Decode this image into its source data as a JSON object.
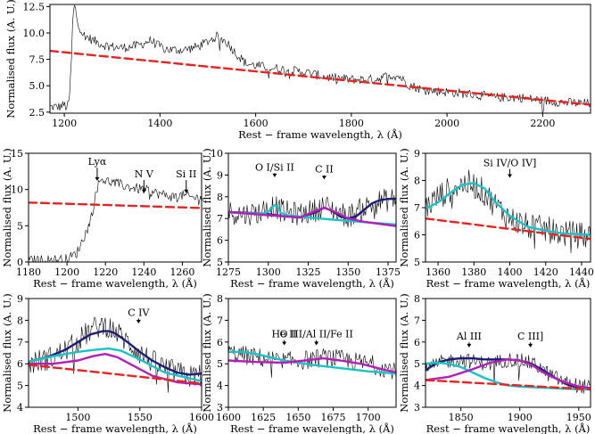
{
  "colors": {
    "data": "#000000",
    "powerlaw": "#e8231f",
    "component_cyan": "#18c3c8",
    "component_magenta": "#b51fb8",
    "total_navy": "#1c1c7a"
  },
  "chart_data": [
    {
      "type": "line",
      "panel": "top",
      "xlabel": "Rest − frame wavelength, λ (Å)",
      "ylabel": "Normalised flux (A. U.)",
      "xlim": [
        1170,
        2300
      ],
      "ylim": [
        2.4,
        12.7
      ],
      "xticks": [
        1200,
        1400,
        1600,
        1800,
        2000,
        2200
      ],
      "yticks": [
        2.5,
        5.0,
        7.5,
        10.0,
        12.5
      ],
      "ytick_labels": [
        "2.5",
        "5.0",
        "7.5",
        "10.0",
        "12.5"
      ],
      "annotations": [],
      "series": [
        {
          "name": "observed spectrum",
          "style": "data",
          "x": [
            1190,
            1200,
            1205,
            1210,
            1215,
            1218,
            1222,
            1228,
            1240,
            1260,
            1280,
            1300,
            1320,
            1340,
            1360,
            1380,
            1400,
            1420,
            1450,
            1480,
            1500,
            1520,
            1540,
            1560,
            1580,
            1600,
            1650,
            1700,
            1750,
            1800,
            1850,
            1880,
            1900,
            1920,
            1950,
            2000,
            2050,
            2100,
            2150,
            2200,
            2250,
            2300
          ],
          "y": [
            3.0,
            3.2,
            2.9,
            3.4,
            7.5,
            11.8,
            12.6,
            11.0,
            9.8,
            9.3,
            8.9,
            8.7,
            8.6,
            8.7,
            8.9,
            9.3,
            8.7,
            8.4,
            8.4,
            8.7,
            9.2,
            9.7,
            9.1,
            8.0,
            7.1,
            6.9,
            6.6,
            6.3,
            5.8,
            5.6,
            5.6,
            6.0,
            5.9,
            5.1,
            4.6,
            4.4,
            4.2,
            3.9,
            3.9,
            3.6,
            3.4,
            3.3
          ],
          "noise": 0.45
        },
        {
          "name": "power-law continuum",
          "style": "powerlaw",
          "x": [
            1170,
            2300
          ],
          "y": [
            8.3,
            3.2
          ]
        }
      ]
    },
    {
      "type": "line",
      "panel": "Lya",
      "xlabel": "Rest − frame wavelength, λ (Å)",
      "ylabel": "Normalised flux (A. U.)",
      "xlim": [
        1180,
        1270
      ],
      "ylim": [
        0,
        15
      ],
      "xticks": [
        1180,
        1200,
        1220,
        1240,
        1260
      ],
      "yticks": [
        0,
        5,
        10,
        15
      ],
      "ytick_labels": [
        "0",
        "5",
        "10",
        "15"
      ],
      "annotations": [
        {
          "text": "Lyα",
          "x": 1215.7,
          "y_top": 13.5,
          "y_tip": 11.2
        },
        {
          "text": "N V",
          "x": 1240.0,
          "y_top": 11.8,
          "y_tip": 9.5
        },
        {
          "text": "Si II",
          "x": 1262.0,
          "y_top": 11.8,
          "y_tip": 9.5
        }
      ],
      "series": [
        {
          "name": "observed spectrum",
          "style": "data",
          "x": [
            1180,
            1190,
            1200,
            1205,
            1209,
            1212,
            1214,
            1216,
            1218,
            1220,
            1225,
            1230,
            1235,
            1240,
            1245,
            1250,
            1255,
            1260,
            1265,
            1270
          ],
          "y": [
            0.2,
            0.3,
            0.4,
            1.2,
            3.5,
            5.5,
            8.0,
            10.6,
            11.6,
            11.2,
            10.9,
            10.5,
            10.2,
            10.0,
            9.6,
            9.3,
            9.0,
            9.2,
            8.9,
            8.8
          ],
          "noise": 0.7
        },
        {
          "name": "power-law continuum",
          "style": "powerlaw",
          "x": [
            1180,
            1270
          ],
          "y": [
            8.2,
            7.45
          ]
        }
      ]
    },
    {
      "type": "line",
      "panel": "SiII_CII",
      "xlabel": "Rest − frame wavelength, λ (Å)",
      "ylabel": "Normalised flux (A. U.)",
      "xlim": [
        1275,
        1380
      ],
      "ylim": [
        5,
        10
      ],
      "xticks": [
        1275,
        1300,
        1325,
        1350,
        1375
      ],
      "yticks": [
        5,
        6,
        7,
        8,
        9,
        10
      ],
      "ytick_labels": [
        "5",
        "6",
        "7",
        "8",
        "9",
        "10"
      ],
      "annotations": [
        {
          "text": "O I/Si II",
          "x": 1304.0,
          "y_top": 9.25,
          "y_tip": 8.9
        },
        {
          "text": "C II",
          "x": 1335.0,
          "y_top": 9.15,
          "y_tip": 8.8
        }
      ],
      "series": [
        {
          "name": "observed spectrum",
          "style": "data",
          "x": [
            1275,
            1285,
            1295,
            1302,
            1305,
            1310,
            1320,
            1330,
            1335,
            1340,
            1350,
            1360,
            1370,
            1380
          ],
          "y": [
            7.3,
            7.2,
            7.3,
            7.6,
            7.5,
            7.3,
            7.2,
            7.4,
            7.6,
            7.4,
            7.1,
            7.5,
            7.8,
            7.9
          ],
          "noise": 0.55
        },
        {
          "name": "total model",
          "style": "total",
          "x": [
            1275,
            1290,
            1300,
            1310,
            1320,
            1330,
            1335,
            1340,
            1345,
            1350,
            1355,
            1360,
            1365,
            1370,
            1375,
            1380
          ],
          "y": [
            7.3,
            7.25,
            7.2,
            7.1,
            7.05,
            7.3,
            7.5,
            7.35,
            7.1,
            7.0,
            7.1,
            7.4,
            7.7,
            7.85,
            7.9,
            7.9
          ]
        },
        {
          "name": "O I/Si II component",
          "style": "cyan",
          "x": [
            1275,
            1296,
            1300,
            1302,
            1304,
            1306,
            1308,
            1312,
            1325,
            1340,
            1380
          ],
          "y": [
            7.28,
            7.22,
            7.3,
            7.5,
            7.62,
            7.5,
            7.25,
            7.15,
            7.05,
            6.95,
            6.72
          ]
        },
        {
          "name": "C II component",
          "style": "magenta",
          "x": [
            1275,
            1300,
            1320,
            1328,
            1335,
            1342,
            1350,
            1360,
            1380
          ],
          "y": [
            7.3,
            7.15,
            7.05,
            7.3,
            7.5,
            7.3,
            7.0,
            6.85,
            6.65
          ]
        }
      ]
    },
    {
      "type": "line",
      "panel": "SiIV",
      "xlabel": "Rest − frame wavelength, λ (Å)",
      "ylabel": "Normalised flux (A. U.)",
      "xlim": [
        1353,
        1445
      ],
      "ylim": [
        5,
        9
      ],
      "xticks": [
        1360,
        1380,
        1400,
        1420,
        1440
      ],
      "yticks": [
        5,
        6,
        7,
        8,
        9
      ],
      "ytick_labels": [
        "5",
        "6",
        "7",
        "8",
        "9"
      ],
      "annotations": [
        {
          "text": "Si IV/O IV]",
          "x": 1400.0,
          "y_top": 8.55,
          "y_tip": 8.1
        }
      ],
      "series": [
        {
          "name": "observed spectrum",
          "style": "data",
          "x": [
            1353,
            1360,
            1370,
            1378,
            1385,
            1392,
            1400,
            1410,
            1420,
            1430,
            1445
          ],
          "y": [
            7.0,
            7.4,
            7.8,
            7.9,
            7.6,
            7.1,
            6.6,
            6.3,
            6.2,
            6.05,
            5.95
          ],
          "noise": 0.5
        },
        {
          "name": "Si IV/O IV] component",
          "style": "cyan",
          "x": [
            1353,
            1360,
            1368,
            1374,
            1380,
            1386,
            1392,
            1400,
            1410,
            1420,
            1430,
            1445
          ],
          "y": [
            6.95,
            7.2,
            7.6,
            7.85,
            7.9,
            7.7,
            7.2,
            6.7,
            6.3,
            6.15,
            6.05,
            6.0
          ]
        },
        {
          "name": "power-law continuum",
          "style": "powerlaw",
          "x": [
            1353,
            1445
          ],
          "y": [
            6.6,
            5.85
          ]
        }
      ]
    },
    {
      "type": "line",
      "panel": "CIV",
      "xlabel": "Rest − frame wavelength, λ (Å)",
      "ylabel": "Normalised flux (A. U.)",
      "xlim": [
        1460,
        1600
      ],
      "ylim": [
        4,
        9
      ],
      "xticks": [
        1500,
        1550,
        1600
      ],
      "yticks": [
        4,
        5,
        6,
        7,
        8,
        9
      ],
      "ytick_labels": [
        "4",
        "5",
        "6",
        "7",
        "8",
        "9"
      ],
      "annotations": [
        {
          "text": "C IV",
          "x": 1549.0,
          "y_top": 8.25,
          "y_tip": 7.85
        }
      ],
      "series": [
        {
          "name": "observed spectrum",
          "style": "data",
          "x": [
            1460,
            1480,
            1495,
            1505,
            1515,
            1522,
            1530,
            1540,
            1550,
            1560,
            1575,
            1590,
            1600
          ],
          "y": [
            6.0,
            6.3,
            6.8,
            7.3,
            7.7,
            7.8,
            7.5,
            7.0,
            6.5,
            6.1,
            5.7,
            5.4,
            5.5
          ],
          "noise": 0.55
        },
        {
          "name": "total model",
          "style": "total",
          "x": [
            1460,
            1475,
            1490,
            1500,
            1510,
            1520,
            1525,
            1530,
            1540,
            1550,
            1560,
            1570,
            1580,
            1590,
            1600
          ],
          "y": [
            6.1,
            6.3,
            6.65,
            7.0,
            7.35,
            7.5,
            7.5,
            7.4,
            7.0,
            6.55,
            6.15,
            5.85,
            5.6,
            5.5,
            5.55
          ]
        },
        {
          "name": "broad C IV component",
          "style": "cyan",
          "x": [
            1460,
            1480,
            1500,
            1515,
            1525,
            1535,
            1550,
            1570,
            1600
          ],
          "y": [
            6.1,
            6.35,
            6.55,
            6.65,
            6.7,
            6.6,
            6.2,
            5.6,
            5.2
          ]
        },
        {
          "name": "narrow C IV component",
          "style": "magenta",
          "x": [
            1460,
            1480,
            1500,
            1512,
            1522,
            1532,
            1545,
            1560,
            1580,
            1600
          ],
          "y": [
            6.0,
            6.0,
            6.15,
            6.35,
            6.45,
            6.3,
            5.9,
            5.45,
            5.15,
            5.05
          ]
        },
        {
          "name": "power-law continuum",
          "style": "powerlaw",
          "x": [
            1460,
            1600
          ],
          "y": [
            5.95,
            5.1
          ]
        }
      ]
    },
    {
      "type": "line",
      "panel": "OIII_AlII_FeII",
      "xlabel": "Rest − frame wavelength, λ (Å)",
      "ylabel": "Normalised flux (A. U.)",
      "xlim": [
        1600,
        1720
      ],
      "ylim": [
        3,
        8
      ],
      "xticks": [
        1600,
        1625,
        1650,
        1675,
        1700
      ],
      "yticks": [
        3,
        4,
        5,
        6,
        7,
        8
      ],
      "ytick_labels": [
        "3",
        "4",
        "5",
        "6",
        "7",
        "8"
      ],
      "annotations": [
        {
          "text": "He II",
          "x": 1640.0,
          "y_top": 6.25,
          "y_tip": 5.85
        },
        {
          "text": "O III/Al II/Fe II",
          "x": 1663.0,
          "y_top": 6.25,
          "y_tip": 5.85
        }
      ],
      "series": [
        {
          "name": "observed spectrum",
          "style": "data",
          "x": [
            1600,
            1620,
            1640,
            1660,
            1670,
            1680,
            1700,
            1720
          ],
          "y": [
            5.5,
            5.3,
            5.1,
            5.2,
            5.3,
            5.2,
            5.0,
            4.7
          ],
          "noise": 0.45
        },
        {
          "name": "Fe II/He II component",
          "style": "cyan",
          "x": [
            1600,
            1610,
            1620,
            1630,
            1640,
            1660,
            1680,
            1700,
            1720
          ],
          "y": [
            5.55,
            5.55,
            5.45,
            5.3,
            5.15,
            4.95,
            4.8,
            4.65,
            4.55
          ]
        },
        {
          "name": "O III/Al II component",
          "style": "magenta",
          "x": [
            1600,
            1620,
            1640,
            1655,
            1668,
            1680,
            1695,
            1710,
            1720
          ],
          "y": [
            5.15,
            5.08,
            5.05,
            5.15,
            5.25,
            5.15,
            5.0,
            4.75,
            4.6
          ]
        }
      ]
    },
    {
      "type": "line",
      "panel": "AlIII_CIII",
      "xlabel": "Rest − frame wavelength, λ (Å)",
      "ylabel": "Normalised flux (A. U.)",
      "xlim": [
        1820,
        1960
      ],
      "ylim": [
        3,
        8
      ],
      "xticks": [
        1850,
        1900,
        1950
      ],
      "yticks": [
        3,
        4,
        5,
        6,
        7,
        8
      ],
      "ytick_labels": [
        "3",
        "4",
        "5",
        "6",
        "7",
        "8"
      ],
      "annotations": [
        {
          "text": "Al III",
          "x": 1857.0,
          "y_top": 6.15,
          "y_tip": 5.75
        },
        {
          "text": "C III]",
          "x": 1909.0,
          "y_top": 6.15,
          "y_tip": 5.75
        }
      ],
      "series": [
        {
          "name": "observed spectrum",
          "style": "data",
          "x": [
            1820,
            1835,
            1850,
            1860,
            1875,
            1890,
            1905,
            1915,
            1925,
            1940,
            1960
          ],
          "y": [
            4.7,
            5.1,
            5.2,
            5.1,
            5.0,
            5.2,
            5.1,
            4.9,
            4.5,
            4.1,
            3.9
          ],
          "noise": 0.35
        },
        {
          "name": "total model",
          "style": "total",
          "x": [
            1820,
            1830,
            1840,
            1850,
            1860,
            1870,
            1880,
            1890,
            1900,
            1910,
            1920,
            1930,
            1940,
            1950,
            1960
          ],
          "y": [
            4.7,
            5.05,
            5.2,
            5.25,
            5.25,
            5.2,
            5.2,
            5.2,
            5.15,
            5.0,
            4.7,
            4.35,
            4.05,
            3.9,
            3.85
          ]
        },
        {
          "name": "Al III component",
          "style": "cyan",
          "x": [
            1820,
            1830,
            1840,
            1850,
            1860,
            1870,
            1880,
            1890,
            1900,
            1920,
            1940,
            1960
          ],
          "y": [
            5.0,
            5.05,
            5.0,
            4.85,
            4.6,
            4.35,
            4.15,
            4.0,
            3.95,
            3.9,
            3.85,
            3.82
          ]
        },
        {
          "name": "C III] component",
          "style": "magenta",
          "x": [
            1820,
            1840,
            1860,
            1875,
            1890,
            1900,
            1910,
            1920,
            1935,
            1950,
            1960
          ],
          "y": [
            4.25,
            4.4,
            4.75,
            5.05,
            5.2,
            5.15,
            4.95,
            4.6,
            4.2,
            3.95,
            3.88
          ]
        },
        {
          "name": "power-law continuum",
          "style": "powerlaw",
          "x": [
            1820,
            1960
          ],
          "y": [
            4.25,
            3.82
          ]
        }
      ]
    }
  ]
}
